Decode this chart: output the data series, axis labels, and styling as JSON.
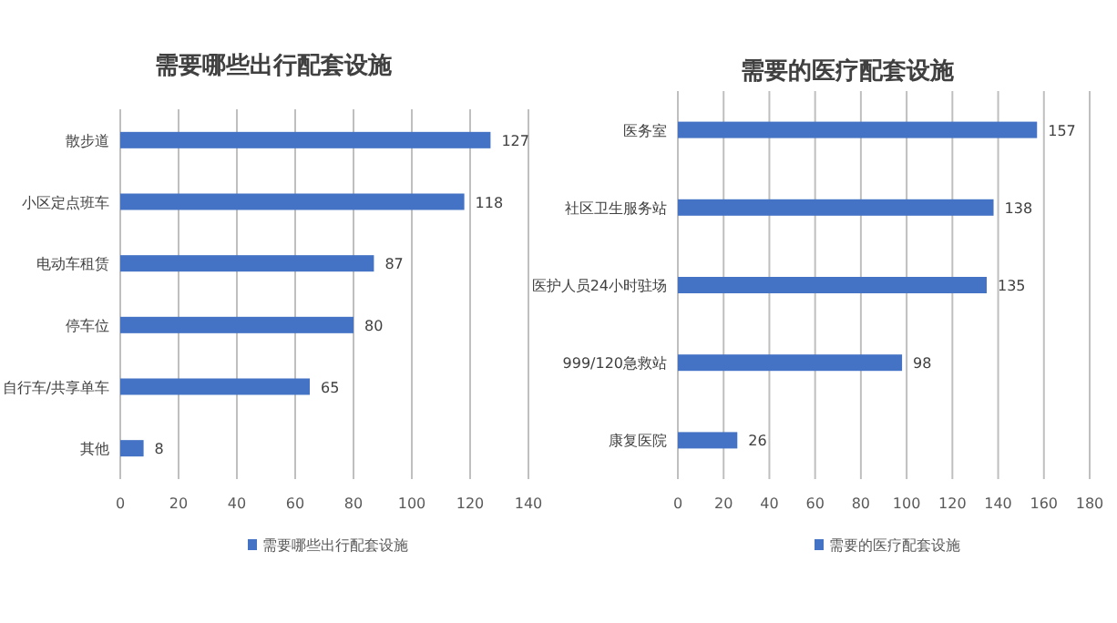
{
  "chart_data": [
    {
      "type": "bar",
      "orientation": "horizontal",
      "title": "需要哪些出行配套设施",
      "categories": [
        "散步道",
        "小区定点班车",
        "电动车租赁",
        "停车位",
        "自行车/共享单车",
        "其他"
      ],
      "series": [
        {
          "name": "需要哪些出行配套设施",
          "color": "#4472c4",
          "values": [
            127,
            118,
            87,
            80,
            65,
            8
          ]
        }
      ],
      "xlim": [
        0,
        140
      ],
      "xticks": [
        0,
        20,
        40,
        60,
        80,
        100,
        120,
        140
      ],
      "grid": "x",
      "legend": "bottom",
      "data_labels": true
    },
    {
      "type": "bar",
      "orientation": "horizontal",
      "title": "需要的医疗配套设施",
      "categories": [
        "医务室",
        "社区卫生服务站",
        "医护人员24小时驻场",
        "999/120急救站",
        "康复医院"
      ],
      "series": [
        {
          "name": "需要的医疗配套设施",
          "color": "#4472c4",
          "values": [
            157,
            138,
            135,
            98,
            26
          ]
        }
      ],
      "xlim": [
        0,
        180
      ],
      "xticks": [
        0,
        20,
        40,
        60,
        80,
        100,
        120,
        140,
        160,
        180
      ],
      "grid": "x",
      "legend": "bottom",
      "data_labels": true
    }
  ]
}
